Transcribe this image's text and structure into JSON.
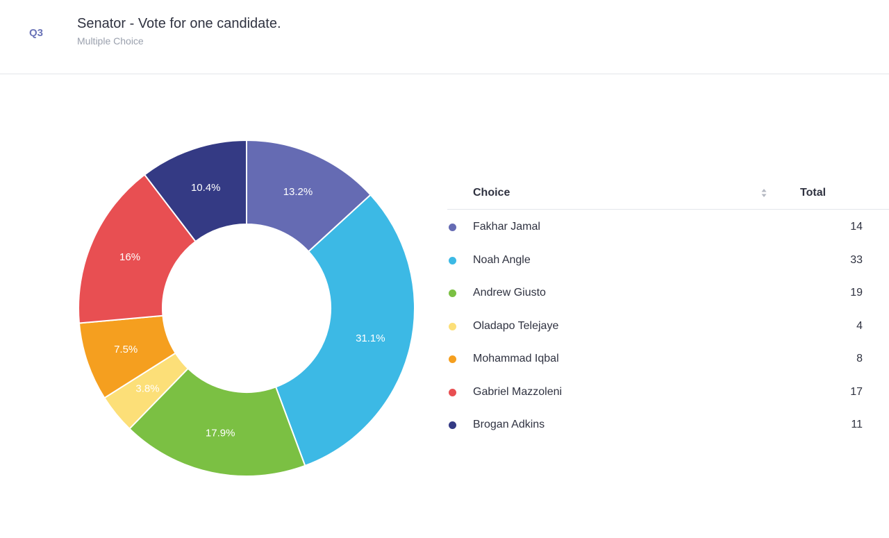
{
  "header": {
    "question_number": "Q3",
    "title": "Senator - Vote for one candidate.",
    "subtitle": "Multiple Choice"
  },
  "table": {
    "choice_header": "Choice",
    "total_header": "Total",
    "sort_icon": "sort-arrows-icon"
  },
  "chart_data": {
    "type": "pie",
    "style": "donut",
    "categories": [
      "Fakhar Jamal",
      "Noah Angle",
      "Andrew Giusto",
      "Oladapo Telejaye",
      "Mohammad Iqbal",
      "Gabriel Mazzoleni",
      "Brogan Adkins"
    ],
    "values": [
      14,
      33,
      19,
      4,
      8,
      17,
      11
    ],
    "percent_labels": [
      "13.2%",
      "31.1%",
      "17.9%",
      "3.8%",
      "7.5%",
      "16%",
      "10.4%"
    ],
    "colors": [
      "#656bb3",
      "#3cb9e5",
      "#7bc043",
      "#fcdf78",
      "#f59f1f",
      "#e84f52",
      "#343a84"
    ],
    "legend_position": "right"
  }
}
